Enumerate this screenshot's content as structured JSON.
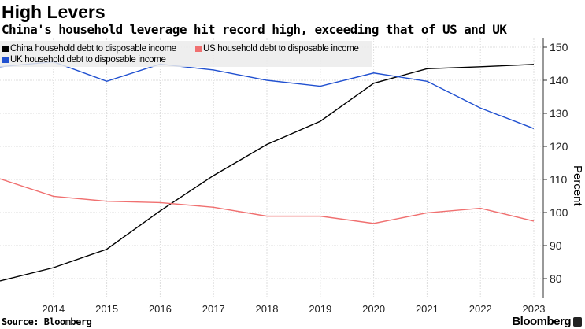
{
  "title": "High Levers",
  "subtitle": "China's household leverage hit record high, exceeding that of US and UK",
  "source": "Source: Bloomberg",
  "brand": "Bloomberg",
  "chart_data": {
    "type": "line",
    "x": [
      2013,
      2014,
      2015,
      2016,
      2017,
      2018,
      2019,
      2020,
      2021,
      2022,
      2023
    ],
    "xticks": [
      "2014",
      "2015",
      "2016",
      "2017",
      "2018",
      "2019",
      "2020",
      "2021",
      "2022",
      "2023"
    ],
    "yticks": [
      "80",
      "90",
      "100",
      "110",
      "120",
      "130",
      "140",
      "150"
    ],
    "ylabel": "Percent",
    "ylim": [
      75,
      152
    ],
    "grid": true,
    "legend_position": "top-left",
    "series": [
      {
        "name": "China household debt to disposable income",
        "color": "#000000",
        "values": [
          79.3,
          83.3,
          88.9,
          100.5,
          111.2,
          120.6,
          127.6,
          139.1,
          143.5,
          144.1,
          144.8
        ]
      },
      {
        "name": "US household debt to disposable income",
        "color": "#f07070",
        "values": [
          110.2,
          104.9,
          103.4,
          103.0,
          101.6,
          98.9,
          98.9,
          96.7,
          99.9,
          101.3,
          97.4
        ]
      },
      {
        "name": "UK household debt to disposable income",
        "color": "#2050d0",
        "values": [
          144.1,
          145.6,
          139.7,
          144.9,
          143.1,
          140.0,
          138.2,
          142.2,
          139.7,
          131.6,
          125.4
        ]
      }
    ]
  }
}
